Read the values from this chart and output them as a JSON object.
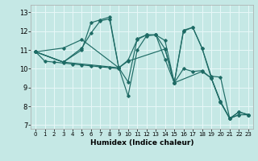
{
  "xlabel": "Humidex (Indice chaleur)",
  "xlim": [
    -0.5,
    23.5
  ],
  "ylim": [
    6.8,
    13.4
  ],
  "xticks": [
    0,
    1,
    2,
    3,
    4,
    5,
    6,
    7,
    8,
    9,
    10,
    11,
    12,
    13,
    14,
    15,
    16,
    17,
    18,
    19,
    20,
    21,
    22,
    23
  ],
  "yticks": [
    7,
    8,
    9,
    10,
    11,
    12,
    13
  ],
  "bg_color": "#c5e8e5",
  "line_color": "#1e6b65",
  "grid_color": "#e8f8f8",
  "lines": [
    {
      "x": [
        0,
        1,
        2,
        3,
        4,
        5,
        6,
        7,
        8,
        9
      ],
      "y": [
        10.9,
        10.4,
        10.35,
        10.3,
        10.25,
        10.2,
        10.15,
        10.1,
        10.05,
        10.0
      ]
    },
    {
      "x": [
        0,
        3,
        5,
        6,
        7,
        8,
        9,
        10,
        11,
        12,
        13,
        14,
        15,
        16,
        17,
        18,
        19,
        20,
        21,
        22,
        23
      ],
      "y": [
        10.9,
        10.35,
        11.1,
        11.9,
        12.55,
        12.65,
        10.05,
        8.55,
        11.0,
        11.75,
        11.8,
        11.05,
        9.25,
        12.05,
        12.2,
        11.1,
        9.6,
        9.55,
        7.35,
        7.7,
        7.55
      ]
    },
    {
      "x": [
        0,
        3,
        5,
        6,
        7,
        8,
        9,
        10,
        11,
        12,
        13,
        14,
        15,
        16,
        17,
        18,
        19,
        20,
        21,
        22,
        23
      ],
      "y": [
        10.9,
        10.35,
        11.0,
        12.45,
        12.6,
        12.75,
        10.05,
        9.3,
        11.6,
        11.8,
        11.8,
        10.5,
        9.25,
        12.0,
        12.2,
        11.1,
        9.5,
        8.2,
        7.35,
        7.7,
        7.55
      ]
    },
    {
      "x": [
        0,
        3,
        5,
        9,
        10,
        11,
        12,
        13,
        14,
        15,
        16,
        17,
        18,
        19,
        20,
        21,
        22,
        23
      ],
      "y": [
        10.9,
        11.1,
        11.55,
        10.05,
        10.45,
        11.55,
        11.8,
        11.8,
        11.5,
        9.25,
        10.0,
        9.85,
        9.9,
        9.5,
        8.25,
        7.35,
        7.55,
        7.55
      ]
    },
    {
      "x": [
        0,
        3,
        9,
        10,
        14,
        15,
        18,
        19,
        20,
        21,
        22,
        23
      ],
      "y": [
        10.9,
        10.35,
        10.05,
        10.4,
        11.05,
        9.25,
        9.85,
        9.5,
        8.25,
        7.35,
        7.55,
        7.55
      ]
    }
  ]
}
